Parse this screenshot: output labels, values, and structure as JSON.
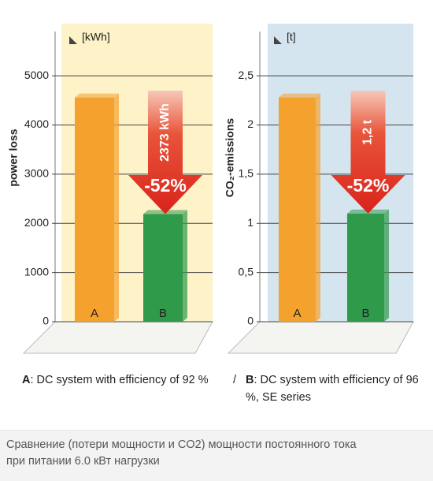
{
  "chart_data": [
    {
      "type": "bar",
      "unit": "[kWh]",
      "y_label": "power loss",
      "categories": [
        "A",
        "B"
      ],
      "values": [
        4560,
        2190
      ],
      "colors": [
        "#f5a12e",
        "#2f9a4a"
      ],
      "ylim": [
        0,
        5900
      ],
      "yticks": [
        0,
        1000,
        2000,
        3000,
        4000,
        5000
      ],
      "panel_color": "#fdf2c8",
      "arrow": {
        "amount": "2373 kWh",
        "percent": "-52%"
      }
    },
    {
      "type": "bar",
      "unit": "[t]",
      "y_label": "CO₂-emissions",
      "categories": [
        "A",
        "B"
      ],
      "values": [
        2.28,
        1.1
      ],
      "colors": [
        "#f5a12e",
        "#2f9a4a"
      ],
      "ylim": [
        0,
        2.95
      ],
      "yticks": [
        0,
        {
          "value": 0.5,
          "label": "0,5"
        },
        1,
        {
          "value": 1.5,
          "label": "1,5"
        },
        2,
        {
          "value": 2.5,
          "label": "2,5"
        }
      ],
      "panel_color": "#d5e5ef",
      "arrow": {
        "amount": "1,2 t",
        "percent": "-52%"
      }
    }
  ],
  "legend": {
    "a_key": "A",
    "a_text": ": DC system with efficiency of 92 %",
    "separator": "/",
    "b_key": "B",
    "b_text": ": DC system with efficiency of 96 %, SE series"
  },
  "caption": [
    "Сравнение (потери мощности и CO2) мощности постоянного тока",
    "при питании 6.0 кВт нагрузки"
  ]
}
